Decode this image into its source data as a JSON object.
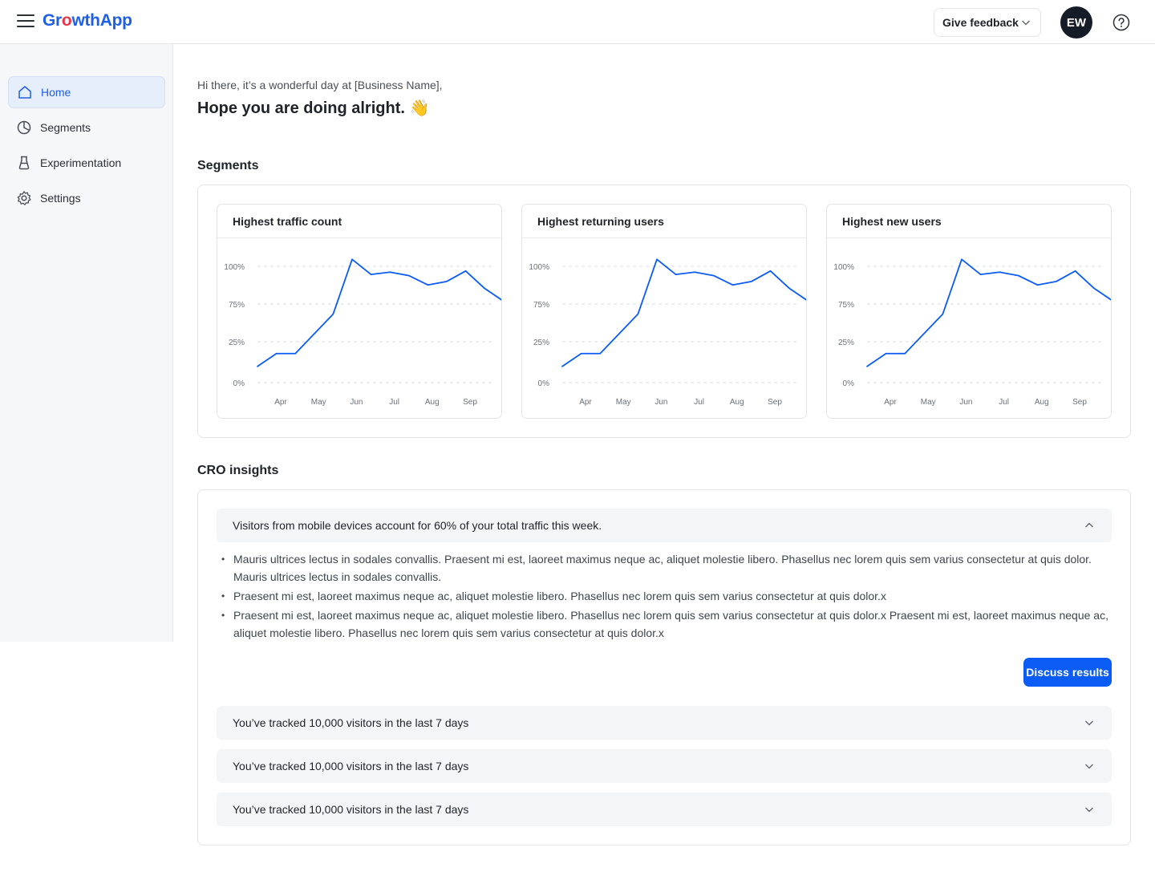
{
  "app": {
    "logo_prefix": "Gr",
    "logo_o": "o",
    "logo_suffix": "wthApp"
  },
  "header": {
    "feedback_label": "Give feedback",
    "avatar_initials": "EW"
  },
  "sidebar": {
    "items": [
      {
        "label": "Home",
        "icon": "home-icon",
        "active": true
      },
      {
        "label": "Segments",
        "icon": "pie-chart-icon",
        "active": false
      },
      {
        "label": "Experimentation",
        "icon": "flask-icon",
        "active": false
      },
      {
        "label": "Settings",
        "icon": "gear-icon",
        "active": false
      }
    ]
  },
  "greeting": {
    "line1": "Hi there, it’s a wonderful day at [Business Name],",
    "line2": "Hope you are doing alright. 👋"
  },
  "segments": {
    "title": "Segments"
  },
  "chart_data": [
    {
      "type": "line",
      "title": "Highest traffic count",
      "xlabel": "",
      "ylabel": "",
      "x_ticks": [
        "Apr",
        "May",
        "Jun",
        "Jul",
        "Aug",
        "Sep"
      ],
      "y_ticks": [
        "0%",
        "25%",
        "75%",
        "100%"
      ],
      "x": [
        0,
        0.5,
        1,
        1.5,
        2,
        2.5,
        3,
        3.5,
        4,
        4.5,
        5,
        5.5,
        6,
        6.5
      ],
      "values": [
        14,
        25,
        25,
        42,
        59,
        106,
        93,
        95,
        92,
        84,
        87,
        96,
        81,
        70
      ],
      "ylim": [
        0,
        100
      ],
      "grid": true,
      "color": "#0a5cf5"
    },
    {
      "type": "line",
      "title": "Highest returning users",
      "xlabel": "",
      "ylabel": "",
      "x_ticks": [
        "Apr",
        "May",
        "Jun",
        "Jul",
        "Aug",
        "Sep"
      ],
      "y_ticks": [
        "0%",
        "25%",
        "75%",
        "100%"
      ],
      "x": [
        0,
        0.5,
        1,
        1.5,
        2,
        2.5,
        3,
        3.5,
        4,
        4.5,
        5,
        5.5,
        6,
        6.5
      ],
      "values": [
        14,
        25,
        25,
        42,
        59,
        106,
        93,
        95,
        92,
        84,
        87,
        96,
        81,
        70
      ],
      "ylim": [
        0,
        100
      ],
      "grid": true,
      "color": "#0a5cf5"
    },
    {
      "type": "line",
      "title": "Highest new users",
      "xlabel": "",
      "ylabel": "",
      "x_ticks": [
        "Apr",
        "May",
        "Jun",
        "Jul",
        "Aug",
        "Sep"
      ],
      "y_ticks": [
        "0%",
        "25%",
        "75%",
        "100%"
      ],
      "x": [
        0,
        0.5,
        1,
        1.5,
        2,
        2.5,
        3,
        3.5,
        4,
        4.5,
        5,
        5.5,
        6,
        6.5
      ],
      "values": [
        14,
        25,
        25,
        42,
        59,
        106,
        93,
        95,
        92,
        84,
        87,
        96,
        81,
        70
      ],
      "ylim": [
        0,
        100
      ],
      "grid": true,
      "color": "#0a5cf5"
    }
  ],
  "cro": {
    "title": "CRO insights",
    "expanded": {
      "title": "Visitors from mobile devices account for 60% of your total traffic this week.",
      "bullets": [
        "Mauris ultrices lectus in sodales convallis. Praesent mi est, laoreet maximus neque ac, aliquet molestie libero. Phasellus nec lorem quis sem varius consectetur at quis dolor. Mauris ultrices lectus in sodales convallis.",
        " Praesent mi est, laoreet maximus neque ac, aliquet molestie libero. Phasellus nec lorem quis sem varius consectetur at quis dolor.x",
        " Praesent mi est, laoreet maximus neque ac, aliquet molestie libero. Phasellus nec lorem quis sem varius consectetur at quis dolor.x Praesent mi est, laoreet maximus neque ac, aliquet molestie libero. Phasellus nec lorem quis sem varius consectetur at quis dolor.x"
      ],
      "button_label": "Discuss results"
    },
    "collapsed": [
      "You’ve tracked 10,000 visitors in the last 7 days",
      "You’ve tracked 10,000 visitors in the last 7 days",
      "You’ve tracked 10,000 visitors in the last 7 days"
    ]
  }
}
